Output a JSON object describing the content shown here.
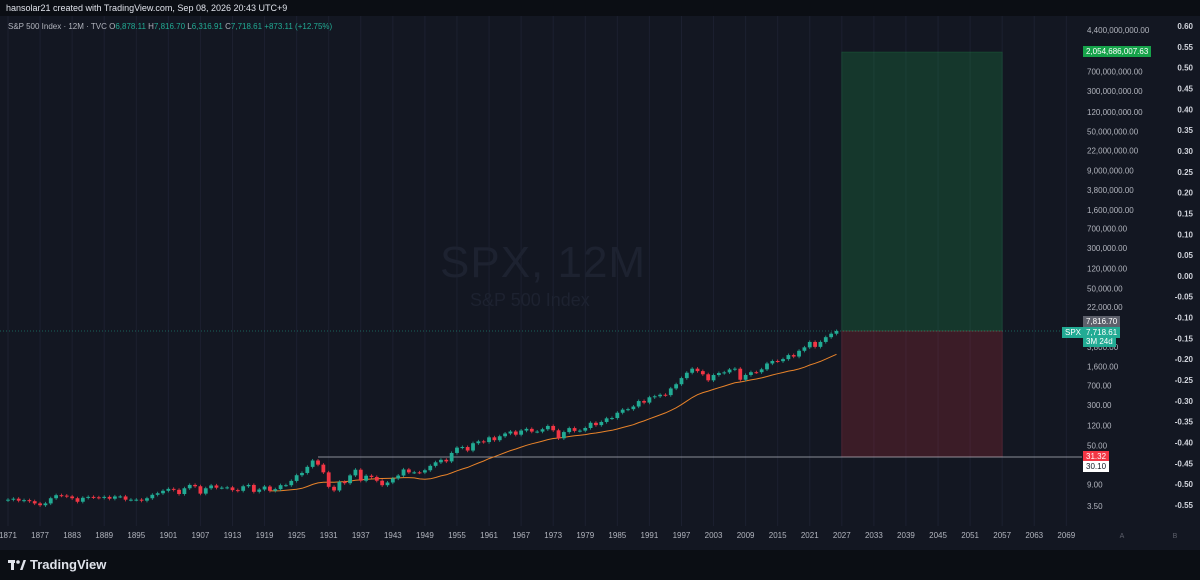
{
  "header": {
    "credit": "hansolar21 created with TradingView.com, Sep 08, 2026 20:43 UTC+9"
  },
  "legend": {
    "symbol": "S&P 500 Index · 12M · TVC",
    "open_label": "O",
    "open": "6,878.11",
    "high_label": "H",
    "high": "7,816.70",
    "low_label": "L",
    "low": "6,316.91",
    "close_label": "C",
    "close": "7,718.61",
    "change": "+873.11 (+12.75%)"
  },
  "watermark": {
    "title": "SPX, 12M",
    "subtitle": "S&P 500 Index"
  },
  "tags": {
    "target": "2,054,686,007.63",
    "high": "7,816.70",
    "symbol": "SPX",
    "price": "7,718.61",
    "countdown": "3M 24d",
    "stop": "31.32",
    "entry": "30.10"
  },
  "footer": {
    "brand": "TradingView"
  },
  "colors": {
    "up": "#22ab94",
    "down": "#f23645",
    "ma": "#e8832a",
    "bg": "#131722"
  },
  "chart_data": {
    "type": "candlestick",
    "x_ticks": [
      "1871",
      "1877",
      "1883",
      "1889",
      "1895",
      "1901",
      "1907",
      "1913",
      "1919",
      "1925",
      "1931",
      "1937",
      "1943",
      "1949",
      "1955",
      "1961",
      "1967",
      "1973",
      "1979",
      "1985",
      "1991",
      "1997",
      "2003",
      "2009",
      "2015",
      "2021",
      "2027",
      "2033",
      "2039",
      "2045",
      "2051",
      "2057",
      "2063",
      "2069"
    ],
    "price_ticks": [
      "4,400,000,000.00",
      "700,000,000.00",
      "300,000,000.00",
      "120,000,000.00",
      "50,000,000.00",
      "22,000,000.00",
      "9,000,000.00",
      "3,800,000.00",
      "1,600,000.00",
      "700,000.00",
      "300,000.00",
      "120,000.00",
      "50,000.00",
      "22,000.00",
      "3,800.00",
      "1,600.00",
      "700.00",
      "300.00",
      "120.00",
      "50.00",
      "9.00",
      "3.50"
    ],
    "pct_ticks": [
      "0.60",
      "0.55",
      "0.50",
      "0.45",
      "0.40",
      "0.35",
      "0.30",
      "0.25",
      "0.20",
      "0.15",
      "0.10",
      "0.05",
      "0.00",
      "-0.05",
      "-0.10",
      "-0.15",
      "-0.20",
      "-0.25",
      "-0.30",
      "-0.35",
      "-0.40",
      "-0.45",
      "-0.50",
      "-0.55"
    ],
    "axis_corner_labels": [
      "A",
      "B"
    ],
    "position": {
      "entry": 30.1,
      "stop_line": 31.32,
      "current": 7718.61,
      "target": 2054686007.63,
      "x_start": 2027,
      "x_end": 2057
    },
    "series": [
      [
        1871,
        4.6
      ],
      [
        1872,
        4.8
      ],
      [
        1873,
        4.4
      ],
      [
        1874,
        4.5
      ],
      [
        1875,
        4.3
      ],
      [
        1876,
        3.9
      ],
      [
        1877,
        3.6
      ],
      [
        1878,
        3.9
      ],
      [
        1879,
        4.9
      ],
      [
        1880,
        5.6
      ],
      [
        1881,
        5.5
      ],
      [
        1882,
        5.3
      ],
      [
        1883,
        4.9
      ],
      [
        1884,
        4.2
      ],
      [
        1885,
        5.0
      ],
      [
        1886,
        5.2
      ],
      [
        1887,
        5.1
      ],
      [
        1888,
        5.0
      ],
      [
        1889,
        5.2
      ],
      [
        1890,
        4.8
      ],
      [
        1891,
        5.3
      ],
      [
        1892,
        5.3
      ],
      [
        1893,
        4.6
      ],
      [
        1894,
        4.6
      ],
      [
        1895,
        4.6
      ],
      [
        1896,
        4.4
      ],
      [
        1897,
        4.9
      ],
      [
        1898,
        5.7
      ],
      [
        1899,
        6.1
      ],
      [
        1900,
        6.8
      ],
      [
        1901,
        7.4
      ],
      [
        1902,
        7.1
      ],
      [
        1903,
        5.9
      ],
      [
        1904,
        7.6
      ],
      [
        1905,
        8.8
      ],
      [
        1906,
        8.3
      ],
      [
        1907,
        6.0
      ],
      [
        1908,
        7.6
      ],
      [
        1909,
        8.6
      ],
      [
        1910,
        7.8
      ],
      [
        1911,
        7.8
      ],
      [
        1912,
        7.9
      ],
      [
        1913,
        7.0
      ],
      [
        1914,
        6.8
      ],
      [
        1915,
        8.3
      ],
      [
        1916,
        8.8
      ],
      [
        1917,
        6.5
      ],
      [
        1918,
        7.2
      ],
      [
        1919,
        8.2
      ],
      [
        1920,
        6.8
      ],
      [
        1921,
        7.3
      ],
      [
        1922,
        8.7
      ],
      [
        1923,
        8.7
      ],
      [
        1924,
        10.5
      ],
      [
        1925,
        13.5
      ],
      [
        1926,
        14.9
      ],
      [
        1927,
        19.5
      ],
      [
        1928,
        25.8
      ],
      [
        1929,
        21.5
      ],
      [
        1930,
        15.3
      ],
      [
        1931,
        8.1
      ],
      [
        1932,
        6.9
      ],
      [
        1933,
        10.1
      ],
      [
        1934,
        9.5
      ],
      [
        1935,
        13.4
      ],
      [
        1936,
        17.2
      ],
      [
        1937,
        10.6
      ],
      [
        1938,
        13.2
      ],
      [
        1939,
        12.5
      ],
      [
        1940,
        10.6
      ],
      [
        1941,
        8.7
      ],
      [
        1942,
        9.8
      ],
      [
        1943,
        11.7
      ],
      [
        1944,
        13.3
      ],
      [
        1945,
        17.4
      ],
      [
        1946,
        15.3
      ],
      [
        1947,
        15.3
      ],
      [
        1948,
        15.2
      ],
      [
        1949,
        16.8
      ],
      [
        1950,
        20.4
      ],
      [
        1951,
        23.8
      ],
      [
        1952,
        26.6
      ],
      [
        1953,
        24.8
      ],
      [
        1954,
        35.98
      ],
      [
        1955,
        45.48
      ],
      [
        1956,
        46.67
      ],
      [
        1957,
        39.99
      ],
      [
        1958,
        55.21
      ],
      [
        1959,
        59.89
      ],
      [
        1960,
        58.11
      ],
      [
        1961,
        71.55
      ],
      [
        1962,
        63.1
      ],
      [
        1963,
        75.02
      ],
      [
        1964,
        84.75
      ],
      [
        1965,
        92.43
      ],
      [
        1966,
        80.33
      ],
      [
        1967,
        96.47
      ],
      [
        1968,
        103.86
      ],
      [
        1969,
        92.06
      ],
      [
        1970,
        92.15
      ],
      [
        1971,
        102.09
      ],
      [
        1972,
        118.05
      ],
      [
        1973,
        97.55
      ],
      [
        1974,
        68.56
      ],
      [
        1975,
        90.19
      ],
      [
        1976,
        107.46
      ],
      [
        1977,
        95.1
      ],
      [
        1978,
        96.11
      ],
      [
        1979,
        107.94
      ],
      [
        1980,
        135.76
      ],
      [
        1981,
        122.55
      ],
      [
        1982,
        140.64
      ],
      [
        1983,
        164.93
      ],
      [
        1984,
        167.24
      ],
      [
        1985,
        211.28
      ],
      [
        1986,
        242.17
      ],
      [
        1987,
        247.08
      ],
      [
        1988,
        277.72
      ],
      [
        1989,
        353.4
      ],
      [
        1990,
        330.22
      ],
      [
        1991,
        417.09
      ],
      [
        1992,
        435.71
      ],
      [
        1993,
        466.45
      ],
      [
        1994,
        459.27
      ],
      [
        1995,
        615.93
      ],
      [
        1996,
        740.74
      ],
      [
        1997,
        970.43
      ],
      [
        1998,
        1229.23
      ],
      [
        1999,
        1469.25
      ],
      [
        2000,
        1320.28
      ],
      [
        2001,
        1148.08
      ],
      [
        2002,
        879.82
      ],
      [
        2003,
        1111.92
      ],
      [
        2004,
        1211.92
      ],
      [
        2005,
        1248.29
      ],
      [
        2006,
        1418.3
      ],
      [
        2007,
        1468.36
      ],
      [
        2008,
        903.25
      ],
      [
        2009,
        1115.1
      ],
      [
        2010,
        1257.64
      ],
      [
        2011,
        1257.6
      ],
      [
        2012,
        1426.19
      ],
      [
        2013,
        1848.36
      ],
      [
        2014,
        2058.9
      ],
      [
        2015,
        2043.94
      ],
      [
        2016,
        2238.83
      ],
      [
        2017,
        2673.61
      ],
      [
        2018,
        2506.85
      ],
      [
        2019,
        3230.78
      ],
      [
        2020,
        3756.07
      ],
      [
        2021,
        4766.18
      ],
      [
        2022,
        3839.5
      ],
      [
        2023,
        4769.83
      ],
      [
        2024,
        5881.63
      ],
      [
        2025,
        6845.5
      ],
      [
        2026,
        7718.61
      ]
    ]
  }
}
